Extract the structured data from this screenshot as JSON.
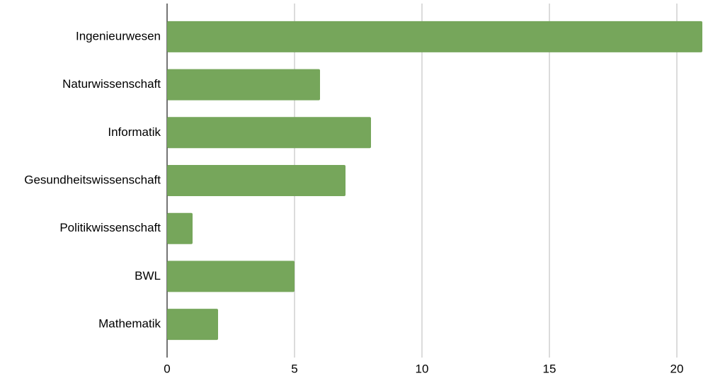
{
  "chart_data": {
    "type": "bar",
    "categories": [
      "Ingenieurwesen",
      "Naturwissenschaft",
      "Informatik",
      "Gesundheitswissenschaft",
      "Politikwissenschaft",
      "BWL",
      "Mathematik"
    ],
    "values": [
      21,
      6,
      8,
      7,
      1,
      5,
      2
    ],
    "color": "#76a65b",
    "xlim": [
      0,
      21.5
    ],
    "xticks": [
      0,
      5,
      10,
      15,
      20
    ],
    "grid": true
  }
}
